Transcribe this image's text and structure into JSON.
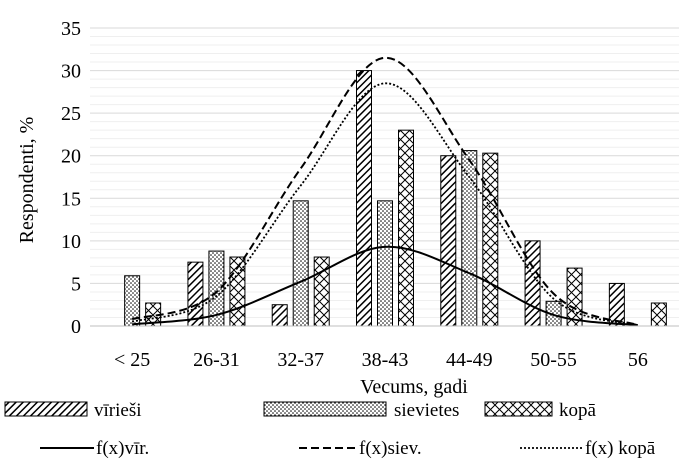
{
  "chart_data": {
    "type": "bar",
    "categories": [
      "< 25",
      "26-31",
      "32-37",
      "38-43",
      "44-49",
      "50-55",
      "56"
    ],
    "xlabel": "Vecums, gadi",
    "ylabel": "Respondenti, %",
    "ylim": [
      0,
      35
    ],
    "yticks": [
      0,
      5,
      10,
      15,
      20,
      25,
      30,
      35
    ],
    "grid": true,
    "legend_position": "bottom",
    "series": [
      {
        "name": "vīrieši",
        "kind": "bar",
        "pattern": "diagonal-stripes",
        "values": [
          0,
          7.5,
          2.5,
          30,
          20,
          10,
          5
        ]
      },
      {
        "name": "sievietes",
        "kind": "bar",
        "pattern": "dots",
        "values": [
          5.9,
          8.8,
          14.7,
          14.7,
          20.6,
          2.9,
          0
        ]
      },
      {
        "name": "kopā",
        "kind": "bar",
        "pattern": "crosshatch",
        "values": [
          2.7,
          8.1,
          8.1,
          23.0,
          20.3,
          6.8,
          2.7
        ]
      },
      {
        "name": "f(x)vīr.",
        "kind": "line",
        "style": "solid",
        "values": [
          0.2,
          1.3,
          5.2,
          9.3,
          6.2,
          1.3,
          0.1
        ]
      },
      {
        "name": "f(x)siev.",
        "kind": "line",
        "style": "dashed",
        "values": [
          0.8,
          4.0,
          18.5,
          31.5,
          19.5,
          3.8,
          0.1
        ]
      },
      {
        "name": "f(x) kopā",
        "kind": "line",
        "style": "dotted",
        "values": [
          0.5,
          3.5,
          16.5,
          28.5,
          17.5,
          3.2,
          0.1
        ]
      }
    ]
  }
}
